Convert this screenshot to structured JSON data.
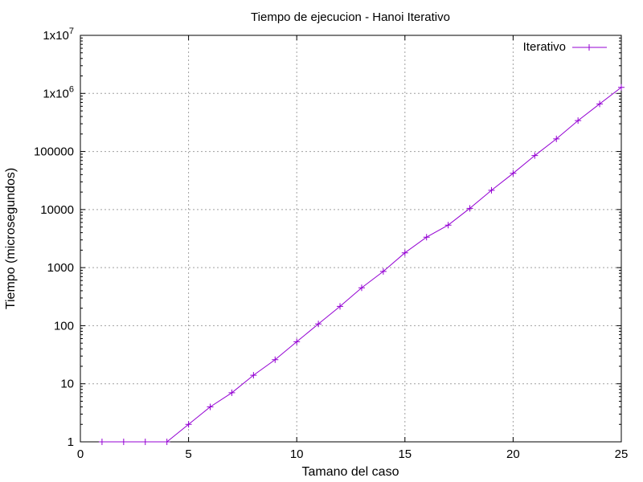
{
  "chart_data": {
    "type": "line",
    "title": "Tiempo de ejecucion - Hanoi Iterativo",
    "xlabel": "Tamano del caso",
    "ylabel": "Tiempo (microsegundos)",
    "xlim": [
      0,
      25
    ],
    "ylim": [
      1,
      10000000
    ],
    "yscale": "log",
    "grid": true,
    "legend_position": "top-right",
    "x_ticks": [
      "0",
      "5",
      "10",
      "15",
      "20",
      "25"
    ],
    "x_tick_values": [
      0,
      5,
      10,
      15,
      20,
      25
    ],
    "y_ticks": [
      {
        "value": 1,
        "base": "1",
        "exp": ""
      },
      {
        "value": 10,
        "base": "10",
        "exp": ""
      },
      {
        "value": 100,
        "base": "100",
        "exp": ""
      },
      {
        "value": 1000,
        "base": "1000",
        "exp": ""
      },
      {
        "value": 10000,
        "base": "10000",
        "exp": ""
      },
      {
        "value": 100000,
        "base": "100000",
        "exp": ""
      },
      {
        "value": 1000000,
        "base": "1x10",
        "exp": "6"
      },
      {
        "value": 10000000,
        "base": "1x10",
        "exp": "7"
      }
    ],
    "series": [
      {
        "name": "Iterativo",
        "color": "#9400d3",
        "marker": "plus",
        "x": [
          1,
          2,
          3,
          4,
          5,
          6,
          7,
          8,
          9,
          10,
          11,
          12,
          13,
          14,
          15,
          16,
          17,
          18,
          19,
          20,
          21,
          22,
          23,
          24,
          25
        ],
        "y": [
          1,
          1,
          1,
          1,
          2,
          4,
          7,
          14,
          26,
          53,
          107,
          215,
          450,
          860,
          1800,
          3350,
          5400,
          10500,
          21500,
          42000,
          85000,
          165000,
          340000,
          660000,
          1270000
        ]
      }
    ]
  }
}
